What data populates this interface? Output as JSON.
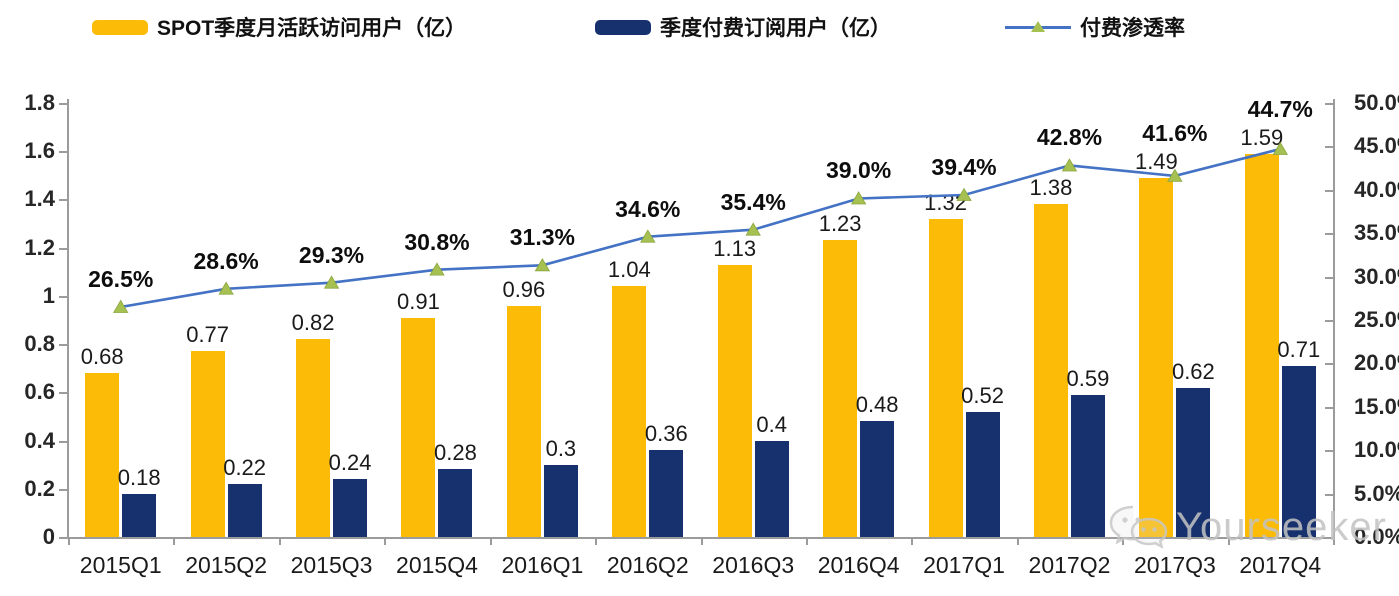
{
  "legend": [
    {
      "label": "SPOT季度月活跃访问用户（亿）",
      "color": "#FBBB06",
      "type": "bar"
    },
    {
      "label": "季度付费订阅用户（亿）",
      "color": "#16316D",
      "type": "bar"
    },
    {
      "label": "付费渗透率",
      "color": "#4472C4",
      "marker_color": "#A6C052",
      "type": "line"
    }
  ],
  "chart_data": {
    "type": "bar",
    "subtype": "grouped-bar-with-line-combo",
    "categories": [
      "2015Q1",
      "2015Q2",
      "2015Q3",
      "2015Q4",
      "2016Q1",
      "2016Q2",
      "2016Q3",
      "2016Q4",
      "2017Q1",
      "2017Q2",
      "2017Q3",
      "2017Q4"
    ],
    "series": [
      {
        "name": "SPOT季度月活跃访问用户（亿）",
        "type": "bar",
        "axis": "left",
        "color": "#FBBB06",
        "values": [
          0.68,
          0.77,
          0.82,
          0.91,
          0.96,
          1.04,
          1.13,
          1.23,
          1.32,
          1.38,
          1.49,
          1.59
        ],
        "labels": [
          "0.68",
          "0.77",
          "0.82",
          "0.91",
          "0.96",
          "1.04",
          "1.13",
          "1.23",
          "1.32",
          "1.38",
          "1.49",
          "1.59"
        ]
      },
      {
        "name": "季度付费订阅用户（亿）",
        "type": "bar",
        "axis": "left",
        "color": "#16316D",
        "values": [
          0.18,
          0.22,
          0.24,
          0.28,
          0.3,
          0.36,
          0.4,
          0.48,
          0.52,
          0.59,
          0.62,
          0.71
        ],
        "labels": [
          "0.18",
          "0.22",
          "0.24",
          "0.28",
          "0.3",
          "0.36",
          "0.4",
          "0.48",
          "0.52",
          "0.59",
          "0.62",
          "0.71"
        ]
      },
      {
        "name": "付费渗透率",
        "type": "line",
        "axis": "right",
        "color": "#4472C4",
        "marker": "triangle-up",
        "marker_color": "#A6C052",
        "values": [
          26.5,
          28.6,
          29.3,
          30.8,
          31.3,
          34.6,
          35.4,
          39.0,
          39.4,
          42.8,
          41.6,
          44.7
        ],
        "labels": [
          "26.5%",
          "28.6%",
          "29.3%",
          "30.8%",
          "31.3%",
          "34.6%",
          "35.4%",
          "39.0%",
          "39.4%",
          "42.8%",
          "41.6%",
          "44.7%"
        ]
      }
    ],
    "left_axis": {
      "min": 0,
      "max": 1.8,
      "ticks": [
        "1.8",
        "1.6",
        "1.4",
        "1.2",
        "1",
        "0.8",
        "0.6",
        "0.4",
        "0.2",
        "0"
      ]
    },
    "right_axis": {
      "min": 0,
      "max": 50,
      "ticks": [
        "50.0%",
        "45.0%",
        "40.0%",
        "35.0%",
        "30.0%",
        "25.0%",
        "20.0%",
        "15.0%",
        "10.0%",
        "5.0%",
        "0.0%"
      ]
    },
    "grid": false,
    "legend_position": "top"
  },
  "watermark": {
    "text": "Yourseeker",
    "icon": "wechat-icon"
  },
  "colors": {
    "bar_mau": "#FBBB06",
    "bar_subs": "#16316D",
    "line": "#4472C4",
    "marker": "#A6C052",
    "axis": "#9B9B9B",
    "watermark": "#C3C3C3"
  }
}
